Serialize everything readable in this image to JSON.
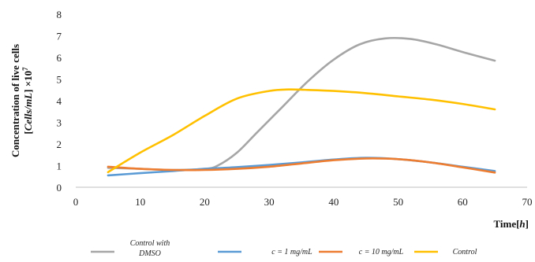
{
  "chart_data": {
    "type": "line",
    "ylabel_line1": "Concentration of live cells",
    "ylabel_line2_pre": "[",
    "ylabel_line2_unit": "Cells/mL",
    "ylabel_line2_post": "] ×10",
    "ylabel_exponent": "7",
    "xlabel_pre": "Time[",
    "xlabel_unit": "h",
    "xlabel_post": "]",
    "xlim": [
      0,
      70
    ],
    "ylim": [
      0,
      8
    ],
    "x_ticks": [
      "0",
      "10",
      "20",
      "30",
      "40",
      "50",
      "60",
      "70"
    ],
    "y_ticks": [
      "0",
      "1",
      "2",
      "3",
      "4",
      "5",
      "6",
      "7",
      "8"
    ],
    "grid": false,
    "legend_position": "bottom",
    "series": [
      {
        "name": "Control with DMSO",
        "legend_lines": [
          "Control with",
          "DMSO"
        ],
        "color": "#a6a6a6",
        "points": [
          [
            5,
            0.9
          ],
          [
            10,
            0.85
          ],
          [
            15,
            0.8
          ],
          [
            20,
            0.85
          ],
          [
            22,
            1.0
          ],
          [
            25,
            1.6
          ],
          [
            28,
            2.5
          ],
          [
            32,
            3.7
          ],
          [
            36,
            4.9
          ],
          [
            40,
            5.9
          ],
          [
            44,
            6.6
          ],
          [
            48,
            6.88
          ],
          [
            52,
            6.85
          ],
          [
            56,
            6.6
          ],
          [
            60,
            6.25
          ],
          [
            65,
            5.85
          ]
        ]
      },
      {
        "name": "c = 1 mg/mL",
        "legend_lines": [
          "c = 1 mg/mL"
        ],
        "color": "#5b9bd5",
        "points": [
          [
            5,
            0.55
          ],
          [
            10,
            0.65
          ],
          [
            15,
            0.75
          ],
          [
            20,
            0.85
          ],
          [
            25,
            0.93
          ],
          [
            30,
            1.03
          ],
          [
            35,
            1.15
          ],
          [
            40,
            1.28
          ],
          [
            45,
            1.36
          ],
          [
            50,
            1.3
          ],
          [
            55,
            1.15
          ],
          [
            60,
            0.95
          ],
          [
            65,
            0.75
          ]
        ]
      },
      {
        "name": "c = 10 mg/mL",
        "legend_lines": [
          "c = 10 mg/mL"
        ],
        "color": "#ed7d31",
        "points": [
          [
            5,
            0.95
          ],
          [
            10,
            0.85
          ],
          [
            15,
            0.8
          ],
          [
            20,
            0.8
          ],
          [
            25,
            0.85
          ],
          [
            30,
            0.95
          ],
          [
            35,
            1.1
          ],
          [
            40,
            1.25
          ],
          [
            45,
            1.33
          ],
          [
            50,
            1.3
          ],
          [
            55,
            1.15
          ],
          [
            60,
            0.92
          ],
          [
            65,
            0.68
          ]
        ]
      },
      {
        "name": "Control",
        "legend_lines": [
          "Control"
        ],
        "color": "#ffc000",
        "points": [
          [
            5,
            0.7
          ],
          [
            10,
            1.6
          ],
          [
            15,
            2.4
          ],
          [
            20,
            3.3
          ],
          [
            25,
            4.1
          ],
          [
            30,
            4.45
          ],
          [
            33,
            4.52
          ],
          [
            36,
            4.5
          ],
          [
            40,
            4.45
          ],
          [
            45,
            4.35
          ],
          [
            50,
            4.2
          ],
          [
            55,
            4.05
          ],
          [
            60,
            3.85
          ],
          [
            65,
            3.6
          ]
        ]
      }
    ]
  }
}
